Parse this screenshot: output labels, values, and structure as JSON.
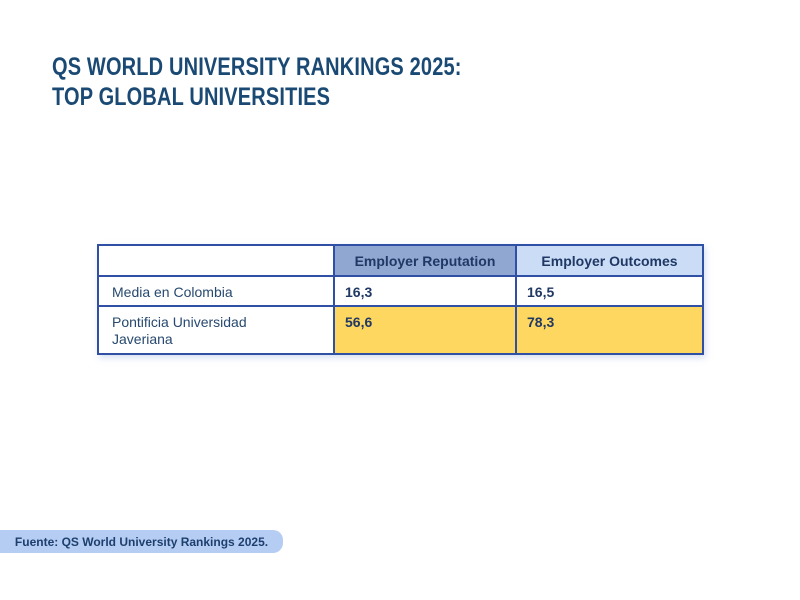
{
  "title": {
    "line1": "QS WORLD UNIVERSITY RANKINGS 2025:",
    "line2": "TOP GLOBAL UNIVERSITIES",
    "color": "#1a4a74"
  },
  "table": {
    "columns": [
      {
        "label": "",
        "header_bg": "#ffffff"
      },
      {
        "label": "Employer Reputation",
        "header_bg": "#8fa7d1"
      },
      {
        "label": "Employer Outcomes",
        "header_bg": "#cbddf6"
      }
    ],
    "rows": [
      {
        "label": "Media en Colombia",
        "values": [
          "16,3",
          "16,5"
        ],
        "highlight": false
      },
      {
        "label": "Pontificia Universidad Javeriana",
        "values": [
          "56,6",
          "78,3"
        ],
        "highlight": true
      }
    ],
    "border_color": "#3050a5",
    "highlight_color": "#fdd75f",
    "header_text_color": "#1f3864",
    "value_text_color": "#203864"
  },
  "footer": {
    "source_label": "Fuente: QS World University Rankings 2025.",
    "bg": "#b6cdf3"
  },
  "chart_data": {
    "type": "table",
    "title": "QS World University Rankings 2025: Top Global Universities",
    "columns": [
      "",
      "Employer Reputation",
      "Employer Outcomes"
    ],
    "rows": [
      {
        "label": "Media en Colombia",
        "employer_reputation": 16.3,
        "employer_outcomes": 16.5
      },
      {
        "label": "Pontificia Universidad Javeriana",
        "employer_reputation": 56.6,
        "employer_outcomes": 78.3
      }
    ],
    "highlighted_row": "Pontificia Universidad Javeriana",
    "source": "Fuente: QS World University Rankings 2025.",
    "notes": "Decimal values shown with comma separator; highlighted row uses yellow background"
  }
}
